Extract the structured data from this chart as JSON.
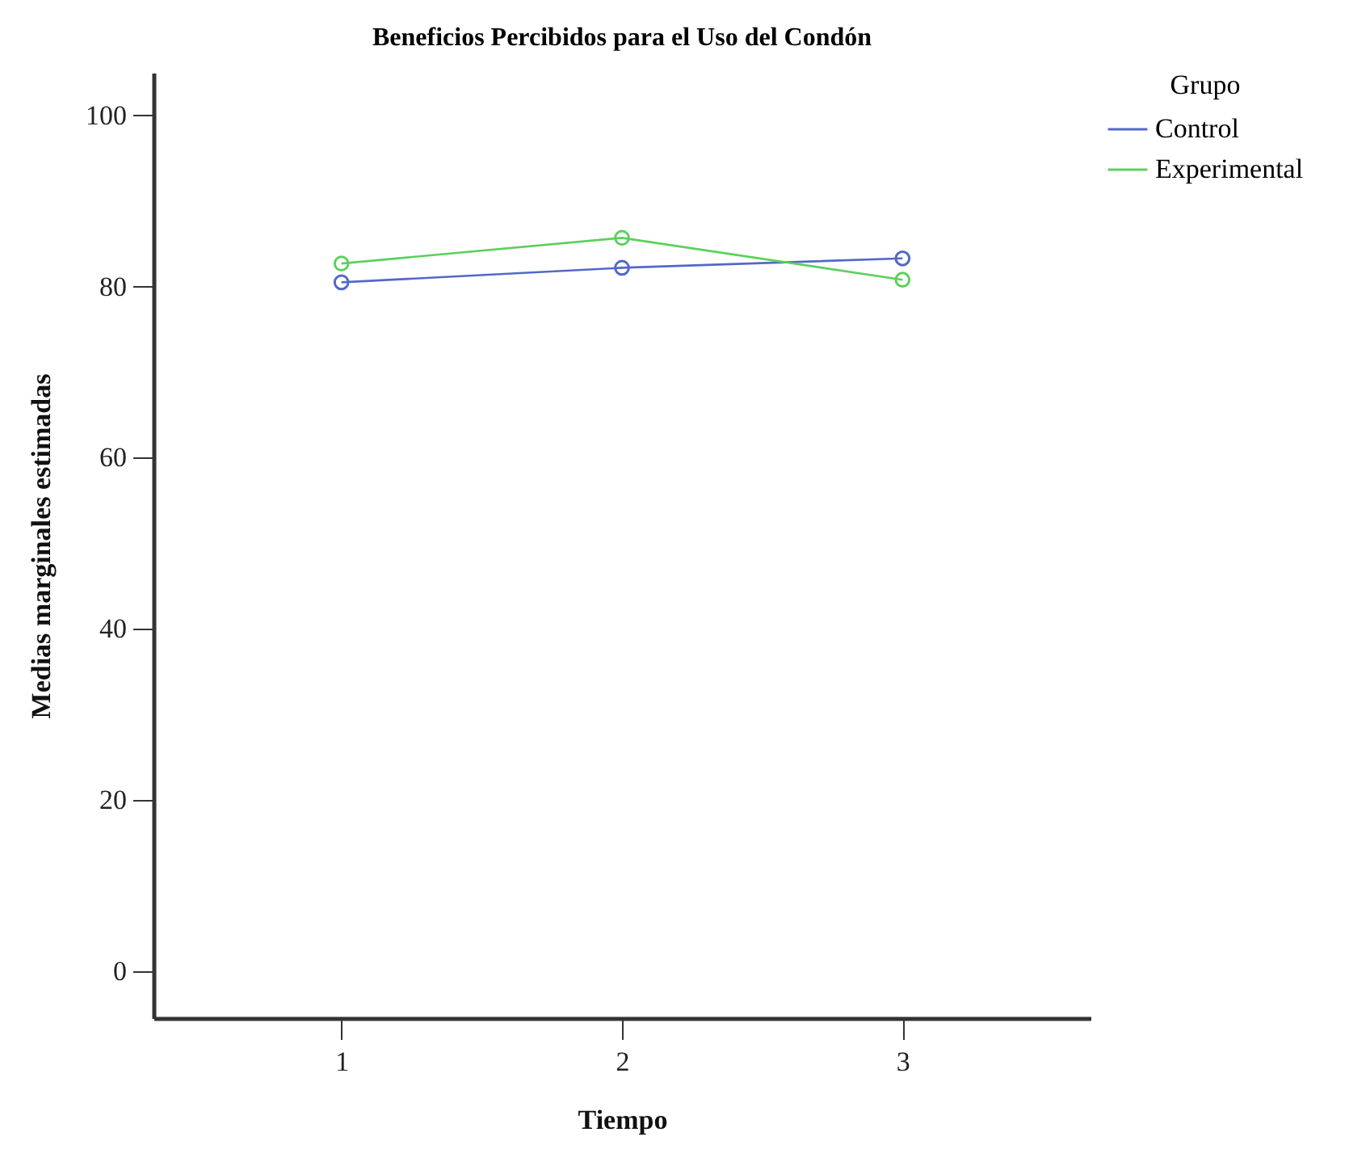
{
  "chart_data": {
    "type": "line",
    "title": "Beneficios Percibidos para el Uso del Condón",
    "xlabel": "Tiempo",
    "ylabel": "Medias marginales estimadas",
    "legend_title": "Grupo",
    "categories": [
      "1",
      "2",
      "3"
    ],
    "series": [
      {
        "name": "Control",
        "color": "#5468c8",
        "values": [
          80.5,
          82.2,
          83.3
        ]
      },
      {
        "name": "Experimental",
        "color": "#5cd05c",
        "values": [
          82.7,
          85.7,
          80.8
        ]
      }
    ],
    "ylim": [
      -5.5,
      105
    ],
    "yticks": [
      0,
      20,
      40,
      60,
      80,
      100
    ],
    "grid": false,
    "legend": "top right",
    "marker": "circle",
    "line_style": "solid"
  }
}
